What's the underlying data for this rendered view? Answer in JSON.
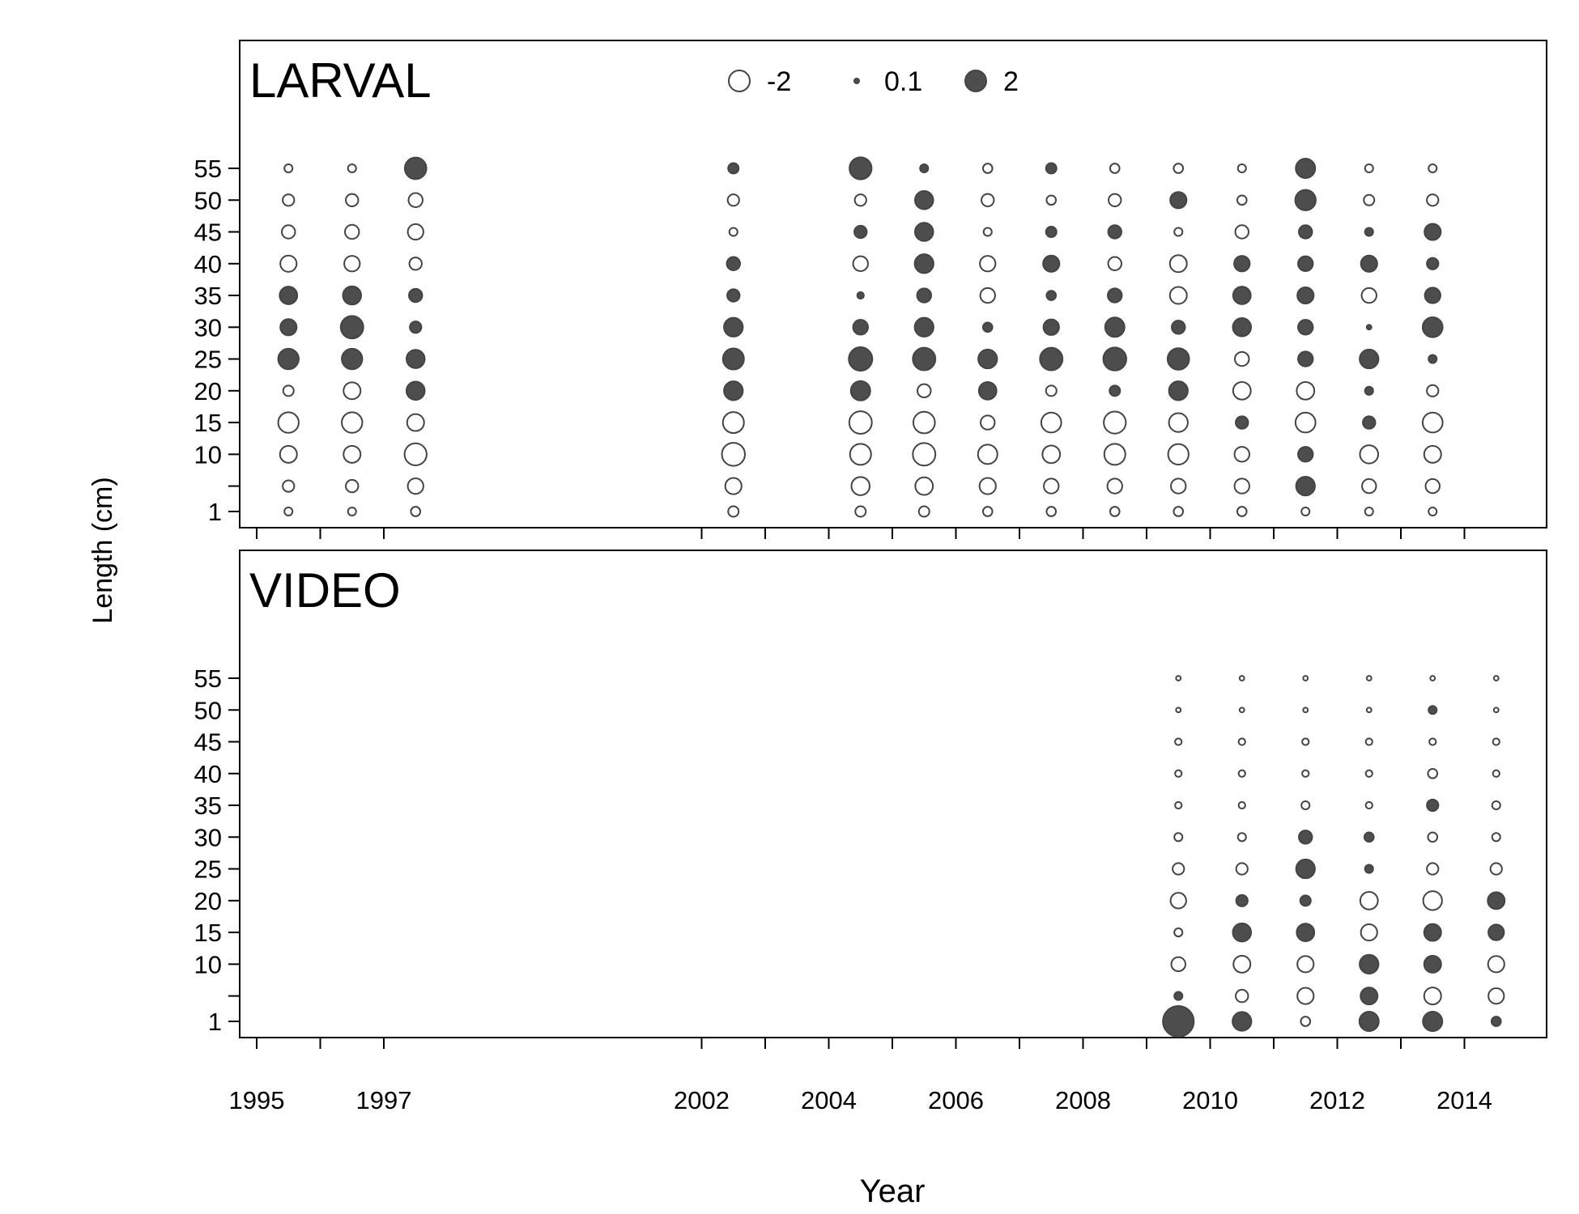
{
  "chart_data": {
    "type": "scatter",
    "subtype": "bubble",
    "xlabel": "Year",
    "ylabel": "Length (cm)",
    "x_ticks": [
      1995,
      1996,
      1997,
      2002,
      2003,
      2004,
      2005,
      2006,
      2007,
      2008,
      2009,
      2010,
      2011,
      2012,
      2013,
      2014
    ],
    "x_tick_labels": [
      "1995",
      "1997",
      "2002",
      "2004",
      "2006",
      "2008",
      "2010",
      "2012",
      "2014"
    ],
    "y_bins": [
      1,
      5,
      10,
      15,
      20,
      25,
      30,
      35,
      40,
      45,
      50,
      55
    ],
    "y_tick_labels": [
      "1",
      "10",
      "15",
      "20",
      "25",
      "30",
      "35",
      "40",
      "45",
      "50",
      "55"
    ],
    "colors": {
      "positive": "#4d4d4d",
      "negative": "#ffffff",
      "stroke": "#444444"
    },
    "legend": {
      "placement": "top-center of first panel",
      "entries": [
        {
          "label": "-2",
          "value": -2
        },
        {
          "label": "0.1",
          "value": 0.1
        },
        {
          "label": "2",
          "value": 2
        }
      ]
    },
    "panels": [
      {
        "name": "LARVAL",
        "x": [
          1995.5,
          1996.5,
          1997.5,
          2002.5,
          2004.5,
          2005.5,
          2006.5,
          2007.5,
          2008.5,
          2009.5,
          2010.5,
          2011.5,
          2012.5,
          2013.5
        ],
        "residuals": [
          [
            -0.3,
            -0.6,
            -1.3,
            -1.9,
            -0.5,
            1.9,
            1.2,
            1.4,
            -1.2,
            -0.8,
            -0.6,
            -0.3
          ],
          [
            -0.3,
            -0.7,
            -1.3,
            -1.9,
            -1.3,
            1.9,
            2.3,
            1.5,
            -1.1,
            -0.9,
            -0.7,
            -0.3
          ],
          [
            -0.4,
            -1.1,
            -2.2,
            -1.3,
            1.5,
            1.5,
            0.6,
            0.8,
            -0.7,
            -1.1,
            -0.9,
            2.1
          ],
          [
            -0.5,
            -1.2,
            -2.4,
            -2.0,
            1.6,
            2.0,
            1.6,
            0.7,
            0.8,
            -0.3,
            -0.6,
            0.5
          ],
          [
            -0.5,
            -1.5,
            -2.0,
            -2.3,
            1.7,
            2.5,
            1.0,
            0.2,
            -1.0,
            0.7,
            -0.6,
            2.2
          ],
          [
            -0.5,
            -1.4,
            -2.3,
            -2.1,
            -0.8,
            2.3,
            1.6,
            0.9,
            1.6,
            1.5,
            1.5,
            0.3
          ],
          [
            -0.4,
            -1.2,
            -1.7,
            -0.9,
            1.4,
            1.6,
            0.4,
            -1.0,
            -1.1,
            -0.3,
            -0.7,
            -0.4
          ],
          [
            -0.4,
            -1.0,
            -1.4,
            -1.8,
            -0.5,
            2.3,
            1.1,
            0.4,
            1.2,
            0.5,
            -0.4,
            0.5
          ],
          [
            -0.4,
            -1.0,
            -2.0,
            -2.2,
            0.5,
            2.4,
            1.7,
            0.9,
            -0.8,
            0.8,
            -0.7,
            -0.4
          ],
          [
            -0.4,
            -1.0,
            -1.9,
            -1.6,
            1.6,
            2.1,
            0.8,
            -1.3,
            -1.3,
            -0.3,
            1.2,
            -0.4
          ],
          [
            -0.4,
            -1.0,
            -1.0,
            0.7,
            -1.4,
            -0.9,
            1.5,
            1.4,
            1.1,
            -0.8,
            -0.4,
            -0.3
          ],
          [
            -0.3,
            1.6,
            1.0,
            -1.8,
            -1.4,
            1.0,
            1.0,
            1.2,
            1.0,
            0.8,
            1.9,
            1.7
          ],
          [
            -0.3,
            -0.9,
            -1.5,
            0.7,
            0.3,
            1.6,
            0.1,
            -1.0,
            1.2,
            0.3,
            -0.5,
            -0.3
          ],
          [
            -0.3,
            -0.9,
            -1.3,
            -1.8,
            -0.6,
            0.3,
            1.8,
            1.1,
            0.6,
            1.2,
            -0.6,
            -0.3
          ]
        ]
      },
      {
        "name": "VIDEO",
        "x": [
          2009.5,
          2010.5,
          2011.5,
          2012.5,
          2013.5,
          2014.5
        ],
        "residuals": [
          [
            4.3,
            0.3,
            -0.9,
            -0.3,
            -1.1,
            -0.6,
            -0.3,
            -0.2,
            -0.2,
            -0.2,
            -0.1,
            -0.1
          ],
          [
            1.6,
            -0.7,
            -1.3,
            1.5,
            0.6,
            -0.6,
            -0.3,
            -0.2,
            -0.2,
            -0.2,
            -0.1,
            -0.1
          ],
          [
            -0.4,
            -1.2,
            -1.2,
            1.4,
            0.5,
            1.6,
            0.8,
            -0.3,
            -0.2,
            -0.2,
            -0.1,
            -0.1
          ],
          [
            1.7,
            1.3,
            1.6,
            -1.2,
            -1.4,
            0.3,
            0.4,
            -0.2,
            -0.2,
            -0.2,
            -0.1,
            -0.1
          ],
          [
            1.7,
            -1.3,
            1.3,
            1.3,
            -1.6,
            -0.6,
            -0.4,
            0.6,
            -0.4,
            -0.2,
            0.3,
            -0.1
          ],
          [
            0.4,
            -1.1,
            -1.2,
            1.1,
            1.3,
            -0.6,
            -0.3,
            -0.3,
            -0.2,
            -0.2,
            -0.1,
            -0.1
          ]
        ]
      }
    ]
  }
}
